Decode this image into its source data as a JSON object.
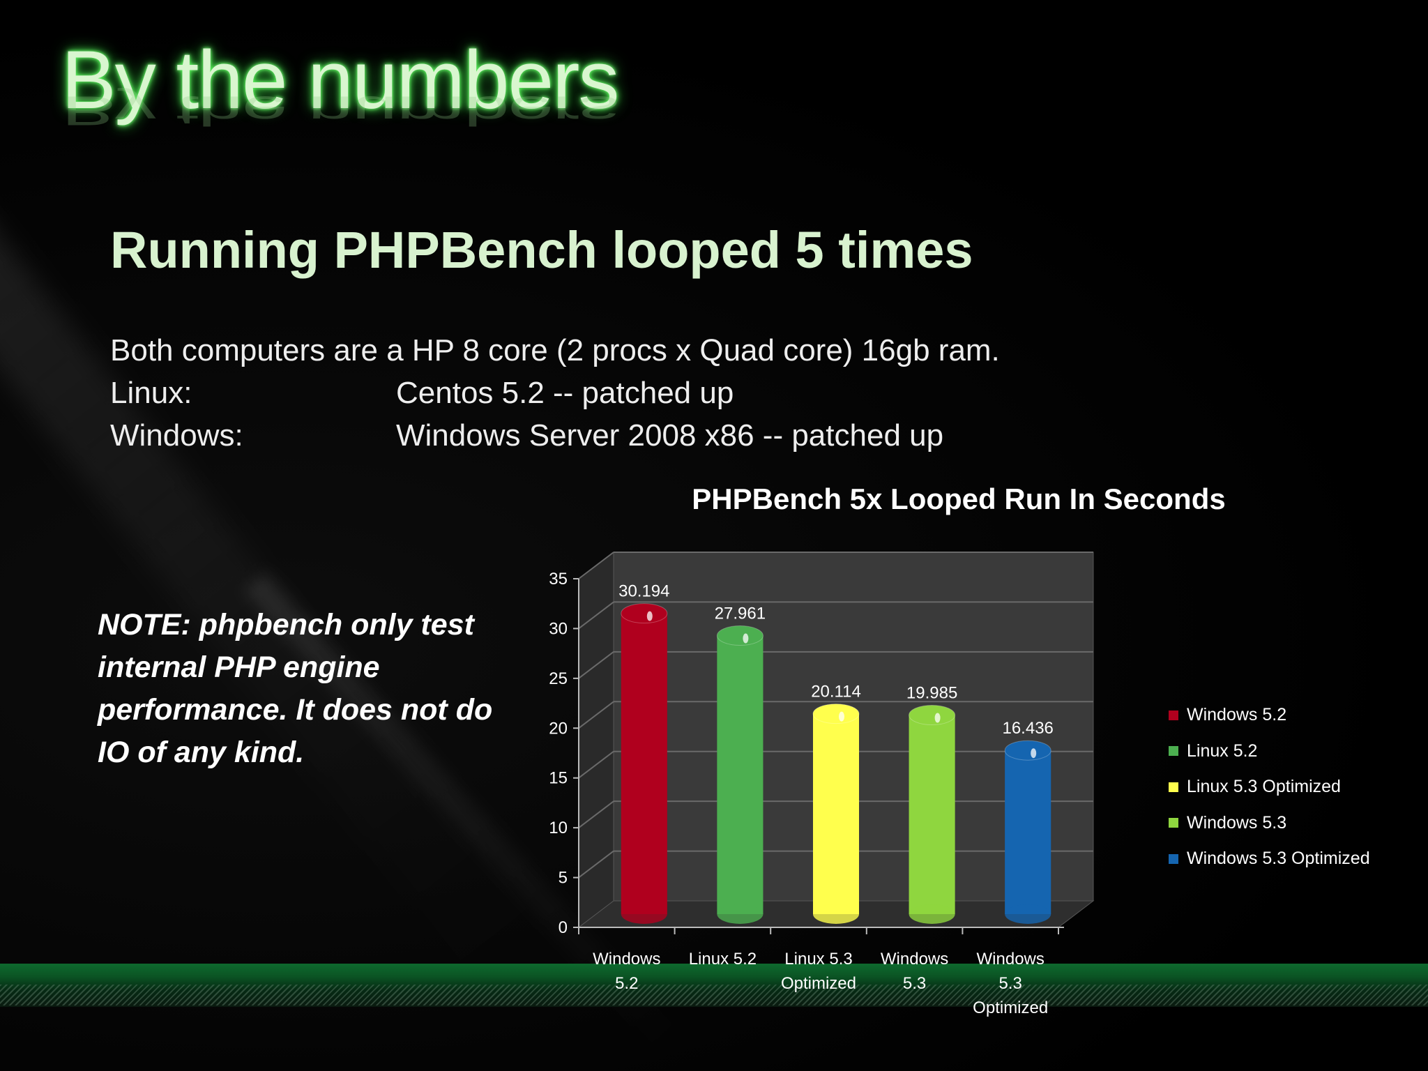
{
  "slide": {
    "title": "By the numbers",
    "subtitle": "Running PHPBench looped 5 times",
    "info": [
      {
        "label": "Both computers are a HP 8 core (2 procs x Quad core) 16gb ram.",
        "value": ""
      },
      {
        "label": "Linux:",
        "value": "Centos 5.2 -- patched up"
      },
      {
        "label": "Windows:",
        "value": "Windows Server 2008 x86 -- patched up"
      }
    ],
    "note": "NOTE: phpbench only test internal PHP engine performance. It does not do IO of any kind."
  },
  "chart_data": {
    "type": "bar",
    "title": "PHPBench 5x Looped Run In Seconds",
    "categories": [
      [
        "Windows",
        "5.2"
      ],
      [
        "Linux 5.2"
      ],
      [
        "Linux 5.3",
        "Optimized"
      ],
      [
        "Windows",
        "5.3"
      ],
      [
        "Windows",
        "5.3",
        "Optimized"
      ]
    ],
    "series": [
      {
        "name": "Windows 5.2",
        "values": [
          30.194,
          null,
          null,
          null,
          null
        ],
        "color": "#b0001e"
      },
      {
        "name": "Linux 5.2",
        "values": [
          null,
          27.961,
          null,
          null,
          null
        ],
        "color": "#4caf50"
      },
      {
        "name": "Linux 5.3 Optimized",
        "values": [
          null,
          null,
          20.114,
          null,
          null
        ],
        "color": "#ffff4d"
      },
      {
        "name": "Windows 5.3",
        "values": [
          null,
          null,
          null,
          19.985,
          null
        ],
        "color": "#8fd63f"
      },
      {
        "name": "Windows 5.3 Optimized",
        "values": [
          null,
          null,
          null,
          null,
          16.436
        ],
        "color": "#1565b0"
      }
    ],
    "value_labels": [
      "30.194",
      "27.961",
      "20.114",
      "19.985",
      "16.436"
    ],
    "yticks": [
      "0",
      "5",
      "10",
      "15",
      "20",
      "25",
      "30",
      "35"
    ],
    "ylim": [
      0,
      35
    ],
    "grid": true,
    "legend_position": "right"
  }
}
